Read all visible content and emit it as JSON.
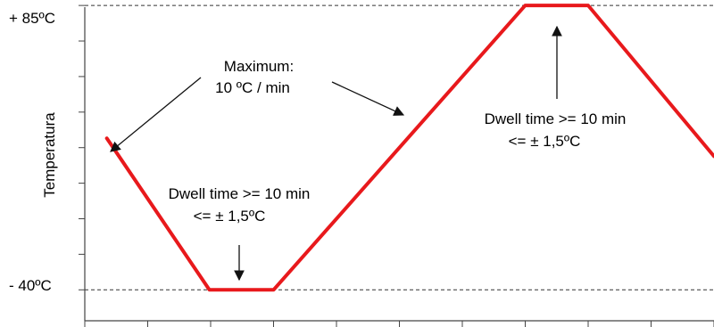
{
  "chart_data": {
    "type": "line",
    "ylabel": "Temperatura",
    "xlabel": "",
    "ylim": [
      -53.6,
      87.4
    ],
    "xlim": [
      0,
      10
    ],
    "yticks": [
      {
        "value": 85,
        "label": "+ 85ºC"
      },
      {
        "value": -40,
        "label": "- 40ºC"
      }
    ],
    "reference_lines": [
      85,
      -40
    ],
    "series": [
      {
        "color": "#e8191c",
        "points": [
          [
            0.35,
            26.6
          ],
          [
            1.98,
            -40
          ],
          [
            3.0,
            -40
          ],
          [
            7.0,
            85
          ],
          [
            8.0,
            85
          ],
          [
            10.0,
            18.7
          ]
        ]
      }
    ],
    "annotations": [
      {
        "text_lines": [
          "Maximum:",
          "10 ºC / min"
        ]
      },
      {
        "text_lines": [
          "Dwell time >= 10 min",
          "<= ± 1,5ºC"
        ]
      },
      {
        "text_lines": [
          "Dwell time >= 10 min",
          "<= ± 1,5ºC"
        ]
      }
    ]
  }
}
